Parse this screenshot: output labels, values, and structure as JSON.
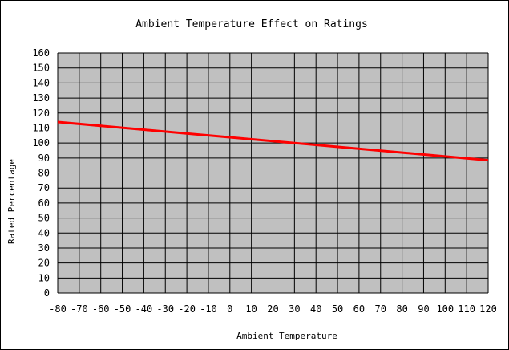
{
  "chart_data": {
    "type": "line",
    "title": "Ambient Temperature Effect on Ratings",
    "xlabel": "Ambient Temperature",
    "ylabel": "Rated Percentage",
    "xlim": [
      -80,
      120
    ],
    "ylim": [
      0,
      160
    ],
    "x_ticks": [
      -80,
      -70,
      -60,
      -50,
      -40,
      -30,
      -20,
      -10,
      0,
      10,
      20,
      30,
      40,
      50,
      60,
      70,
      80,
      90,
      100,
      110,
      120
    ],
    "y_ticks": [
      0,
      10,
      20,
      30,
      40,
      50,
      60,
      70,
      80,
      90,
      100,
      110,
      120,
      130,
      140,
      150,
      160
    ],
    "grid": true,
    "plot_background": "#c0c0c0",
    "series": [
      {
        "color": "#ff0000",
        "x": [
          -80,
          120
        ],
        "y": [
          114,
          88.5
        ]
      }
    ]
  }
}
